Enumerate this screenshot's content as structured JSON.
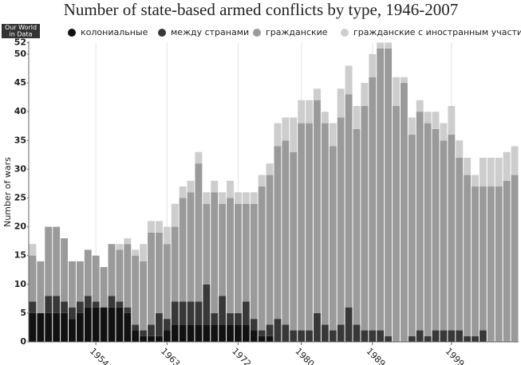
{
  "chart_data": {
    "type": "stacked_bar",
    "title": "Number of state-based armed conflicts by type, 1946-2007",
    "logo": [
      "Our World",
      "in Data"
    ],
    "ylabel": "Number of wars",
    "categories": [
      null,
      null,
      null,
      null,
      null,
      null,
      null,
      null,
      "1954",
      null,
      null,
      null,
      null,
      null,
      null,
      null,
      null,
      "1963",
      null,
      null,
      null,
      null,
      null,
      null,
      null,
      null,
      "1972",
      null,
      null,
      null,
      null,
      null,
      null,
      null,
      "1980",
      null,
      null,
      null,
      null,
      null,
      null,
      null,
      null,
      "1989",
      null,
      null,
      null,
      null,
      null,
      null,
      null,
      null,
      null,
      "1999",
      null,
      null,
      null,
      null,
      null,
      null,
      null,
      null
    ],
    "series": [
      {
        "name": "колониальные",
        "color": "#111111",
        "values": [
          5,
          5,
          5,
          5,
          5,
          4,
          5,
          6,
          6,
          6,
          6,
          6,
          5,
          2,
          1,
          1,
          1,
          2,
          3,
          3,
          3,
          3,
          3,
          3,
          3,
          3,
          3,
          3,
          2,
          1,
          1,
          0,
          0,
          0,
          0,
          0,
          0,
          0,
          0,
          0,
          0,
          0,
          0,
          0,
          0,
          0,
          0,
          0,
          0,
          0,
          0,
          0,
          0,
          0,
          0,
          0,
          0,
          0,
          0,
          0,
          0,
          0
        ]
      },
      {
        "name": "между странами",
        "color": "#383838",
        "values": [
          2,
          0,
          3,
          3,
          2,
          2,
          2,
          2,
          1,
          0,
          2,
          1,
          1,
          1,
          1,
          2,
          4,
          2,
          4,
          4,
          4,
          4,
          7,
          2,
          5,
          2,
          2,
          4,
          2,
          1,
          2,
          4,
          3,
          2,
          2,
          2,
          5,
          3,
          2,
          3,
          6,
          3,
          2,
          2,
          2,
          1,
          0,
          0,
          1,
          2,
          1,
          2,
          2,
          2,
          2,
          1,
          1,
          2,
          0,
          0,
          0,
          0
        ]
      },
      {
        "name": "гражданские",
        "color": "#9a9a9a",
        "values": [
          8,
          9,
          12,
          12,
          11,
          8,
          7,
          8,
          8,
          7,
          9,
          9,
          11,
          12,
          12,
          16,
          14,
          13,
          13,
          18,
          19,
          24,
          14,
          21,
          16,
          20,
          19,
          17,
          20,
          25,
          26,
          30,
          32,
          31,
          36,
          36,
          37,
          35,
          32,
          36,
          37,
          34,
          39,
          44,
          49,
          50,
          41,
          45,
          35,
          38,
          37,
          35,
          33,
          34,
          30,
          28,
          26,
          25,
          27,
          27,
          28,
          29
        ]
      },
      {
        "name": "гражданские с иностранным участием",
        "color": "#cdcdcd",
        "values": [
          2,
          0,
          0,
          0,
          0,
          0,
          0,
          0,
          0,
          0,
          0,
          1,
          1,
          1,
          3,
          2,
          2,
          3,
          4,
          2,
          2,
          2,
          2,
          2,
          2,
          3,
          2,
          2,
          2,
          2,
          2,
          4,
          4,
          6,
          4,
          4,
          2,
          2,
          4,
          5,
          5,
          4,
          4,
          4,
          1,
          1,
          5,
          1,
          3,
          2,
          2,
          3,
          3,
          5,
          3,
          3,
          2,
          5,
          5,
          5,
          5,
          5
        ]
      }
    ],
    "ylim": [
      0,
      52
    ],
    "yticks": [
      0,
      5,
      10,
      15,
      20,
      25,
      30,
      35,
      40,
      45,
      50,
      52
    ],
    "grid": true
  }
}
